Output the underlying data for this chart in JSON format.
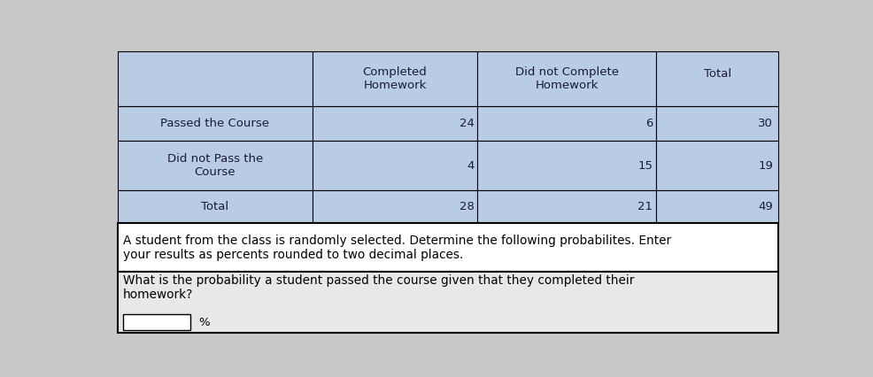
{
  "header_row": [
    "",
    "Completed\nHomework",
    "Did not Complete\nHomework",
    "Total"
  ],
  "data_rows": [
    [
      "Passed the Course",
      "24",
      "6",
      "30"
    ],
    [
      "Did not Pass the\nCourse",
      "4",
      "15",
      "19"
    ],
    [
      "Total",
      "28",
      "21",
      "49"
    ]
  ],
  "text_block1": "A student from the class is randomly selected. Determine the following probabilites. Enter\nyour results as percents rounded to two decimal places.",
  "text_block2": "What is the probability a student passed the course given that they completed their\nhomework?",
  "input_label": "%",
  "cell_blue": "#b8cce4",
  "white": "#ffffff",
  "light_gray": "#e8e8e8",
  "border_color": "#555555",
  "outer_bg": "#c8c8c8",
  "text_color": "#1a1a3a"
}
